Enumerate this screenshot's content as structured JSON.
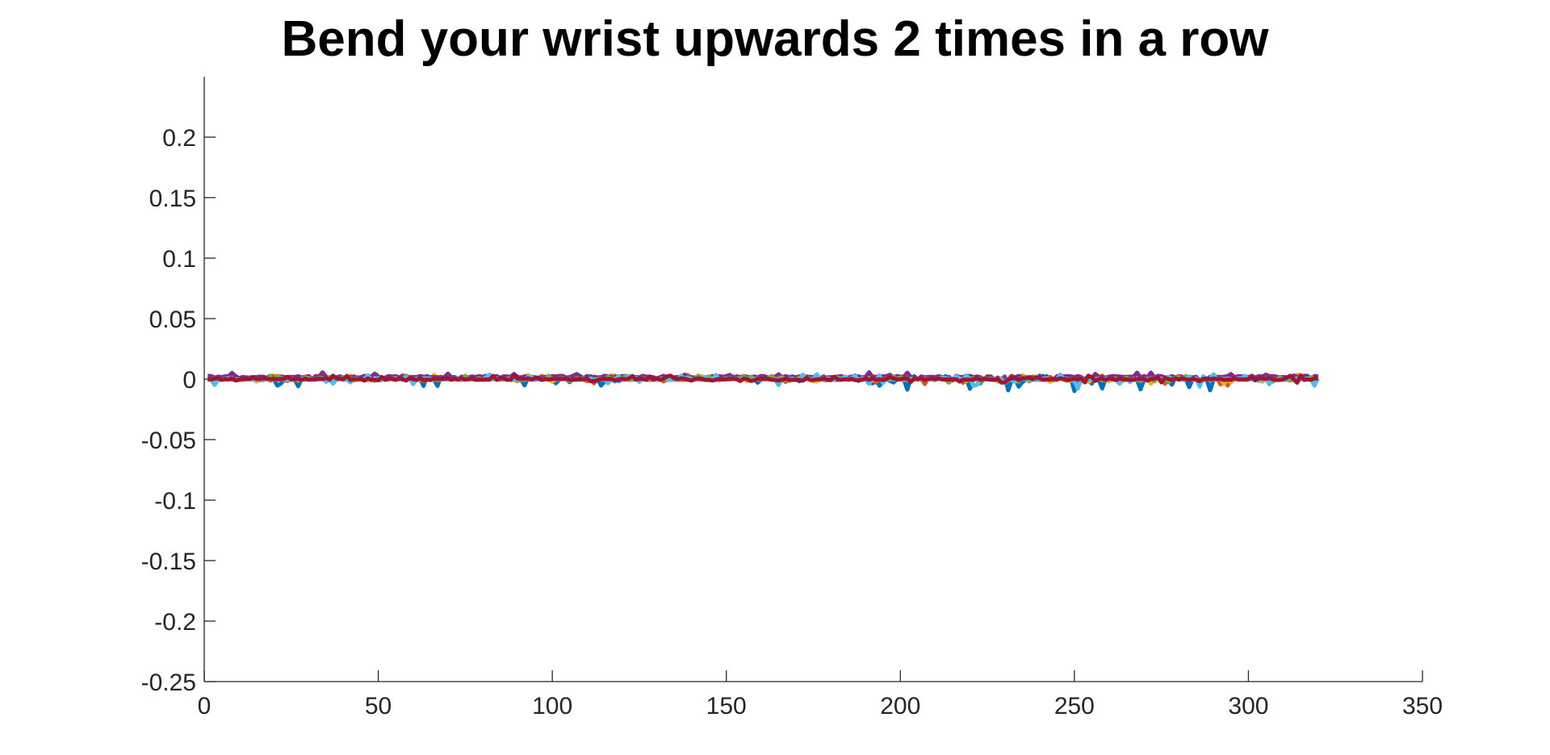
{
  "chart_data": {
    "type": "line",
    "title": "Bend your wrist upwards 2 times in a row",
    "xlabel": "",
    "ylabel": "",
    "xlim": [
      0,
      350
    ],
    "ylim": [
      -0.25,
      0.25
    ],
    "x_ticks": [
      0,
      50,
      100,
      150,
      200,
      250,
      300,
      350
    ],
    "x_tick_labels": [
      "0",
      "50",
      "100",
      "150",
      "200",
      "250",
      "300",
      "350"
    ],
    "y_ticks": [
      0.2,
      0.15,
      0.1,
      0.05,
      0,
      -0.05,
      -0.1,
      -0.15,
      -0.2,
      -0.25
    ],
    "y_tick_labels": [
      "0.2",
      "0.15",
      "0.1",
      "0.05",
      "0",
      "-0.05",
      "-0.1",
      "-0.15",
      "-0.2",
      "-0.25"
    ],
    "grid": false,
    "legend": false,
    "box": false,
    "series_count": 7,
    "sample_count": 320,
    "series": [
      {
        "color": "#0072BD",
        "values_approx": {
          "typical": 0.0,
          "min": -0.01,
          "max": 0.003
        },
        "note_hidden": true
      },
      {
        "color": "#D95319",
        "values_approx": {
          "typical": 0.0,
          "min": -0.006,
          "max": 0.003
        }
      },
      {
        "color": "#EDB120",
        "values_approx": {
          "typical": 0.0,
          "min": -0.004,
          "max": 0.004
        }
      },
      {
        "color": "#7E2F8E",
        "values_approx": {
          "typical": 0.002,
          "min": -0.002,
          "max": 0.006
        }
      },
      {
        "color": "#77AC30",
        "values_approx": {
          "typical": 0.0,
          "min": -0.003,
          "max": 0.003
        }
      },
      {
        "color": "#4DBEEE",
        "values_approx": {
          "typical": 0.0,
          "min": -0.009,
          "max": 0.004
        }
      },
      {
        "color": "#A2142F",
        "values_approx": {
          "typical": 0.0,
          "min": -0.003,
          "max": 0.003
        }
      }
    ]
  }
}
